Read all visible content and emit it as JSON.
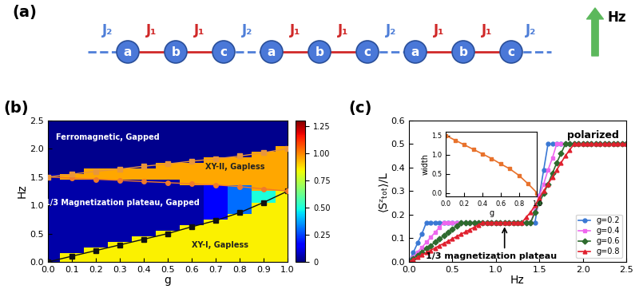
{
  "diagram": {
    "panel_label": "(a)",
    "sites": [
      "a",
      "b",
      "c",
      "a",
      "b",
      "c",
      "a",
      "b",
      "c"
    ],
    "bonds": [
      {
        "label": "J₂",
        "color": "#4f7fd8",
        "line_style": "dashed"
      },
      {
        "label": "J₁",
        "color": "#d02828",
        "line_style": "solid"
      },
      {
        "label": "J₁",
        "color": "#d02828",
        "line_style": "solid"
      },
      {
        "label": "J₂",
        "color": "#4f7fd8",
        "line_style": "dashed"
      },
      {
        "label": "J₁",
        "color": "#d02828",
        "line_style": "solid"
      },
      {
        "label": "J₁",
        "color": "#d02828",
        "line_style": "solid"
      },
      {
        "label": "J₂",
        "color": "#4f7fd8",
        "line_style": "dashed"
      },
      {
        "label": "J₁",
        "color": "#d02828",
        "line_style": "solid"
      },
      {
        "label": "J₁",
        "color": "#d02828",
        "line_style": "solid"
      },
      {
        "label": "J₂",
        "color": "#4f7fd8",
        "line_style": "dashed"
      }
    ],
    "field": "Hz"
  },
  "chart_data": [
    {
      "type": "heatmap",
      "panel_label": "(b)",
      "x_label": "g",
      "y_label": "Hz",
      "x": [
        0,
        0.1,
        0.2,
        0.3,
        0.4,
        0.5,
        0.6,
        0.7,
        0.8,
        0.9,
        1.0
      ],
      "y": [
        0,
        0.1,
        0.2,
        0.3,
        0.4,
        0.5,
        0.6,
        0.7,
        0.8,
        0.9,
        1.0,
        1.1,
        1.2,
        1.3,
        1.4,
        1.5,
        1.6,
        1.7,
        1.8,
        1.9,
        2.0,
        2.1,
        2.2,
        2.3,
        2.4,
        2.5
      ],
      "cells": [
        [
          0.05,
          0.85,
          0.85,
          0.85,
          0.85,
          0.85,
          0.85,
          0.85,
          0.85,
          0.85,
          0.85
        ],
        [
          0.05,
          0.85,
          0.85,
          0.85,
          0.85,
          0.85,
          0.85,
          0.85,
          0.85,
          0.85,
          0.85
        ],
        [
          0.05,
          0.05,
          0.85,
          0.85,
          0.85,
          0.85,
          0.85,
          0.85,
          0.85,
          0.85,
          0.85
        ],
        [
          0.05,
          0.05,
          0.05,
          0.85,
          0.85,
          0.85,
          0.85,
          0.85,
          0.85,
          0.85,
          0.85
        ],
        [
          0.05,
          0.05,
          0.05,
          0.05,
          0.85,
          0.85,
          0.85,
          0.85,
          0.85,
          0.85,
          0.85
        ],
        [
          0.05,
          0.05,
          0.05,
          0.05,
          0.05,
          0.85,
          0.85,
          0.85,
          0.85,
          0.85,
          0.85
        ],
        [
          0.05,
          0.05,
          0.05,
          0.05,
          0.05,
          0.05,
          0.85,
          0.85,
          0.85,
          0.85,
          0.85
        ],
        [
          0.05,
          0.05,
          0.05,
          0.05,
          0.05,
          0.05,
          0.05,
          0.85,
          0.85,
          0.85,
          0.85
        ],
        [
          0.05,
          0.05,
          0.05,
          0.05,
          0.05,
          0.05,
          0.05,
          0.15,
          0.85,
          0.85,
          0.85
        ],
        [
          0.05,
          0.05,
          0.05,
          0.05,
          0.05,
          0.05,
          0.05,
          0.15,
          0.3,
          0.85,
          0.85
        ],
        [
          0.05,
          0.05,
          0.05,
          0.05,
          0.05,
          0.05,
          0.05,
          0.15,
          0.3,
          0.85,
          0.85
        ],
        [
          0.05,
          0.05,
          0.05,
          0.05,
          0.05,
          0.05,
          0.05,
          0.15,
          0.3,
          0.5,
          0.85
        ],
        [
          0.05,
          0.05,
          0.05,
          0.05,
          0.05,
          0.05,
          0.05,
          0.15,
          0.3,
          0.5,
          0.85
        ],
        [
          0.05,
          0.05,
          0.05,
          0.05,
          0.05,
          0.05,
          0.05,
          0.15,
          0.3,
          0.95,
          0.95
        ],
        [
          0.05,
          0.05,
          0.05,
          0.05,
          0.05,
          0.05,
          0.95,
          0.95,
          0.95,
          0.95,
          0.95
        ],
        [
          0.05,
          0.95,
          0.95,
          0.95,
          0.95,
          0.95,
          0.95,
          0.95,
          0.95,
          0.95,
          0.95
        ],
        [
          0.02,
          0.02,
          0.95,
          0.95,
          0.95,
          0.95,
          0.95,
          0.95,
          0.95,
          0.95,
          0.95
        ],
        [
          0.02,
          0.02,
          0.02,
          0.02,
          0.02,
          0.95,
          0.95,
          0.95,
          0.95,
          0.95,
          0.95
        ],
        [
          0.02,
          0.02,
          0.02,
          0.02,
          0.02,
          0.02,
          0.02,
          0.95,
          0.95,
          0.95,
          0.95
        ],
        [
          0.02,
          0.02,
          0.02,
          0.02,
          0.02,
          0.02,
          0.02,
          0.02,
          0.02,
          0.95,
          0.95
        ],
        [
          0.02,
          0.02,
          0.02,
          0.02,
          0.02,
          0.02,
          0.02,
          0.02,
          0.02,
          0.02,
          0.95
        ],
        [
          0.02,
          0.02,
          0.02,
          0.02,
          0.02,
          0.02,
          0.02,
          0.02,
          0.02,
          0.02,
          0.02
        ],
        [
          0.02,
          0.02,
          0.02,
          0.02,
          0.02,
          0.02,
          0.02,
          0.02,
          0.02,
          0.02,
          0.02
        ],
        [
          0.02,
          0.02,
          0.02,
          0.02,
          0.02,
          0.02,
          0.02,
          0.02,
          0.02,
          0.02,
          0.02
        ],
        [
          0.02,
          0.02,
          0.02,
          0.02,
          0.02,
          0.02,
          0.02,
          0.02,
          0.02,
          0.02,
          0.02
        ],
        [
          0.02,
          0.02,
          0.02,
          0.02,
          0.02,
          0.02,
          0.02,
          0.02,
          0.02,
          0.02,
          0.02
        ]
      ],
      "colorbar_lim": [
        0,
        1.3
      ],
      "colorbar_ticks": [
        0,
        0.25,
        {
          "value": 0.5,
          "label": "0.50"
        },
        0.75,
        {
          "value": 1,
          "label": "1.00"
        },
        1.25
      ],
      "series": [
        {
          "color": "#111111",
          "marker": "square",
          "values": [
            0,
            0.1,
            0.2,
            0.3,
            0.4,
            0.5,
            0.62,
            0.73,
            0.87,
            1.05,
            1.25
          ]
        },
        {
          "color": "#f07a2a",
          "marker": "circle",
          "values": [
            1.5,
            1.48,
            1.46,
            1.44,
            1.42,
            1.4,
            1.38,
            1.36,
            1.33,
            1.29,
            1.25
          ]
        },
        {
          "color": "#e8963a",
          "marker": "square",
          "values": [
            1.5,
            1.55,
            1.6,
            1.64,
            1.69,
            1.73,
            1.78,
            1.82,
            1.87,
            1.93,
            2.0
          ]
        }
      ],
      "xlim": [
        0,
        1
      ],
      "xticks": [
        {
          "value": 0,
          "label": "0.0"
        },
        0.1,
        0.2,
        0.3,
        0.4,
        0.5,
        0.6,
        0.7,
        0.8,
        0.9,
        {
          "value": 1,
          "label": "1.0"
        }
      ],
      "ylim": [
        0,
        2.5
      ],
      "yticks": [
        {
          "value": 0,
          "label": "0.0"
        },
        0.5,
        {
          "value": 1,
          "label": "1.0"
        },
        1.5,
        {
          "value": 2,
          "label": "2.0"
        },
        2.5
      ],
      "annotations": [
        "Ferromagnetic, Gapped",
        "XY-II, Gapless",
        "1/3 Magnetization plateau, Gapped",
        "XY-I, Gapless"
      ]
    },
    {
      "type": "line",
      "panel_label": "(c)",
      "x_label": "Hz",
      "y_label": "⟨Sᶻₜₒₜ⟩/L",
      "x": [
        0,
        0.05,
        0.1,
        0.15,
        0.2,
        0.25,
        0.3,
        0.35,
        0.4,
        0.45,
        0.5,
        0.55,
        0.6,
        0.65,
        0.7,
        0.75,
        0.8,
        0.85,
        0.9,
        0.95,
        1.0,
        1.05,
        1.1,
        1.15,
        1.2,
        1.25,
        1.3,
        1.35,
        1.4,
        1.45,
        1.5,
        1.55,
        1.6,
        1.65,
        1.7,
        1.75,
        1.8,
        1.85,
        1.9,
        1.95,
        2.0,
        2.05,
        2.1,
        2.15,
        2.2,
        2.25,
        2.3,
        2.35,
        2.4,
        2.45,
        2.5
      ],
      "series": [
        {
          "name": "g=0.2",
          "color": "#3a78d4",
          "marker": "circle",
          "values": [
            0,
            0.04,
            0.08,
            0.12,
            0.167,
            0.167,
            0.167,
            0.167,
            0.167,
            0.167,
            0.167,
            0.167,
            0.167,
            0.167,
            0.167,
            0.167,
            0.167,
            0.167,
            0.167,
            0.167,
            0.167,
            0.167,
            0.167,
            0.167,
            0.167,
            0.167,
            0.167,
            0.167,
            0.167,
            0.167,
            0.28,
            0.39,
            0.5,
            0.5,
            0.5,
            0.5,
            0.5,
            0.5,
            0.5,
            0.5,
            0.5,
            0.5,
            0.5,
            0.5,
            0.5,
            0.5,
            0.5,
            0.5,
            0.5,
            0.5,
            0.5
          ]
        },
        {
          "name": "g=0.4",
          "color": "#ee66ee",
          "marker": "square",
          "values": [
            0,
            0.021,
            0.042,
            0.062,
            0.083,
            0.104,
            0.125,
            0.146,
            0.167,
            0.167,
            0.167,
            0.167,
            0.167,
            0.167,
            0.167,
            0.167,
            0.167,
            0.167,
            0.167,
            0.167,
            0.167,
            0.167,
            0.167,
            0.167,
            0.167,
            0.167,
            0.167,
            0.167,
            0.167,
            0.22,
            0.28,
            0.33,
            0.39,
            0.44,
            0.5,
            0.5,
            0.5,
            0.5,
            0.5,
            0.5,
            0.5,
            0.5,
            0.5,
            0.5,
            0.5,
            0.5,
            0.5,
            0.5,
            0.5,
            0.5,
            0.5
          ]
        },
        {
          "name": "g=0.6",
          "color": "#2e6b2e",
          "marker": "diamond",
          "values": [
            0,
            0.014,
            0.028,
            0.042,
            0.056,
            0.069,
            0.083,
            0.097,
            0.111,
            0.125,
            0.139,
            0.153,
            0.167,
            0.167,
            0.167,
            0.167,
            0.167,
            0.167,
            0.167,
            0.167,
            0.167,
            0.167,
            0.167,
            0.167,
            0.167,
            0.167,
            0.167,
            0.167,
            0.167,
            0.21,
            0.25,
            0.29,
            0.33,
            0.375,
            0.42,
            0.46,
            0.5,
            0.5,
            0.5,
            0.5,
            0.5,
            0.5,
            0.5,
            0.5,
            0.5,
            0.5,
            0.5,
            0.5,
            0.5,
            0.5,
            0.5
          ]
        },
        {
          "name": "g=0.8",
          "color": "#e0202e",
          "marker": "triangle",
          "values": [
            0,
            0.01,
            0.02,
            0.029,
            0.039,
            0.049,
            0.059,
            0.069,
            0.078,
            0.088,
            0.098,
            0.108,
            0.118,
            0.127,
            0.137,
            0.147,
            0.157,
            0.167,
            0.167,
            0.167,
            0.167,
            0.167,
            0.167,
            0.167,
            0.167,
            0.167,
            0.167,
            0.19,
            0.21,
            0.24,
            0.27,
            0.3,
            0.33,
            0.36,
            0.39,
            0.42,
            0.45,
            0.475,
            0.5,
            0.5,
            0.5,
            0.5,
            0.5,
            0.5,
            0.5,
            0.5,
            0.5,
            0.5,
            0.5,
            0.5,
            0.5
          ]
        }
      ],
      "xlim": [
        0,
        2.5
      ],
      "xticks": [
        {
          "value": 0,
          "label": "0.0"
        },
        0.5,
        {
          "value": 1,
          "label": "1.0"
        },
        1.5,
        {
          "value": 2,
          "label": "2.0"
        },
        2.5
      ],
      "ylim": [
        0,
        0.6
      ],
      "yticks": [
        {
          "value": 0,
          "label": "0.0"
        },
        0.1,
        0.2,
        0.3,
        0.4,
        0.5,
        0.6
      ],
      "legend": "lower right",
      "annotations": [
        "polarized",
        "1/3 magnetization plateau"
      ],
      "inset": {
        "type": "line",
        "x_label": "g",
        "y_label": "width",
        "x": [
          0,
          0.1,
          0.2,
          0.3,
          0.4,
          0.5,
          0.6,
          0.7,
          0.8,
          0.9,
          1.0
        ],
        "series": [
          {
            "color": "#e8722c",
            "marker": "square",
            "values": [
              1.5,
              1.38,
              1.26,
              1.14,
              1.02,
              0.9,
              0.76,
              0.63,
              0.46,
              0.24,
              0.0
            ]
          }
        ],
        "xlim": [
          0,
          1
        ],
        "xticks": [
          {
            "value": 0,
            "label": "0.0"
          },
          0.2,
          0.4,
          0.6,
          0.8,
          {
            "value": 1,
            "label": "1.0"
          }
        ],
        "ylim": [
          -0.1,
          1.6
        ],
        "yticks": [
          {
            "value": 0,
            "label": "0.0"
          },
          0.5,
          {
            "value": 1,
            "label": "1.0"
          },
          1.5
        ]
      }
    }
  ]
}
